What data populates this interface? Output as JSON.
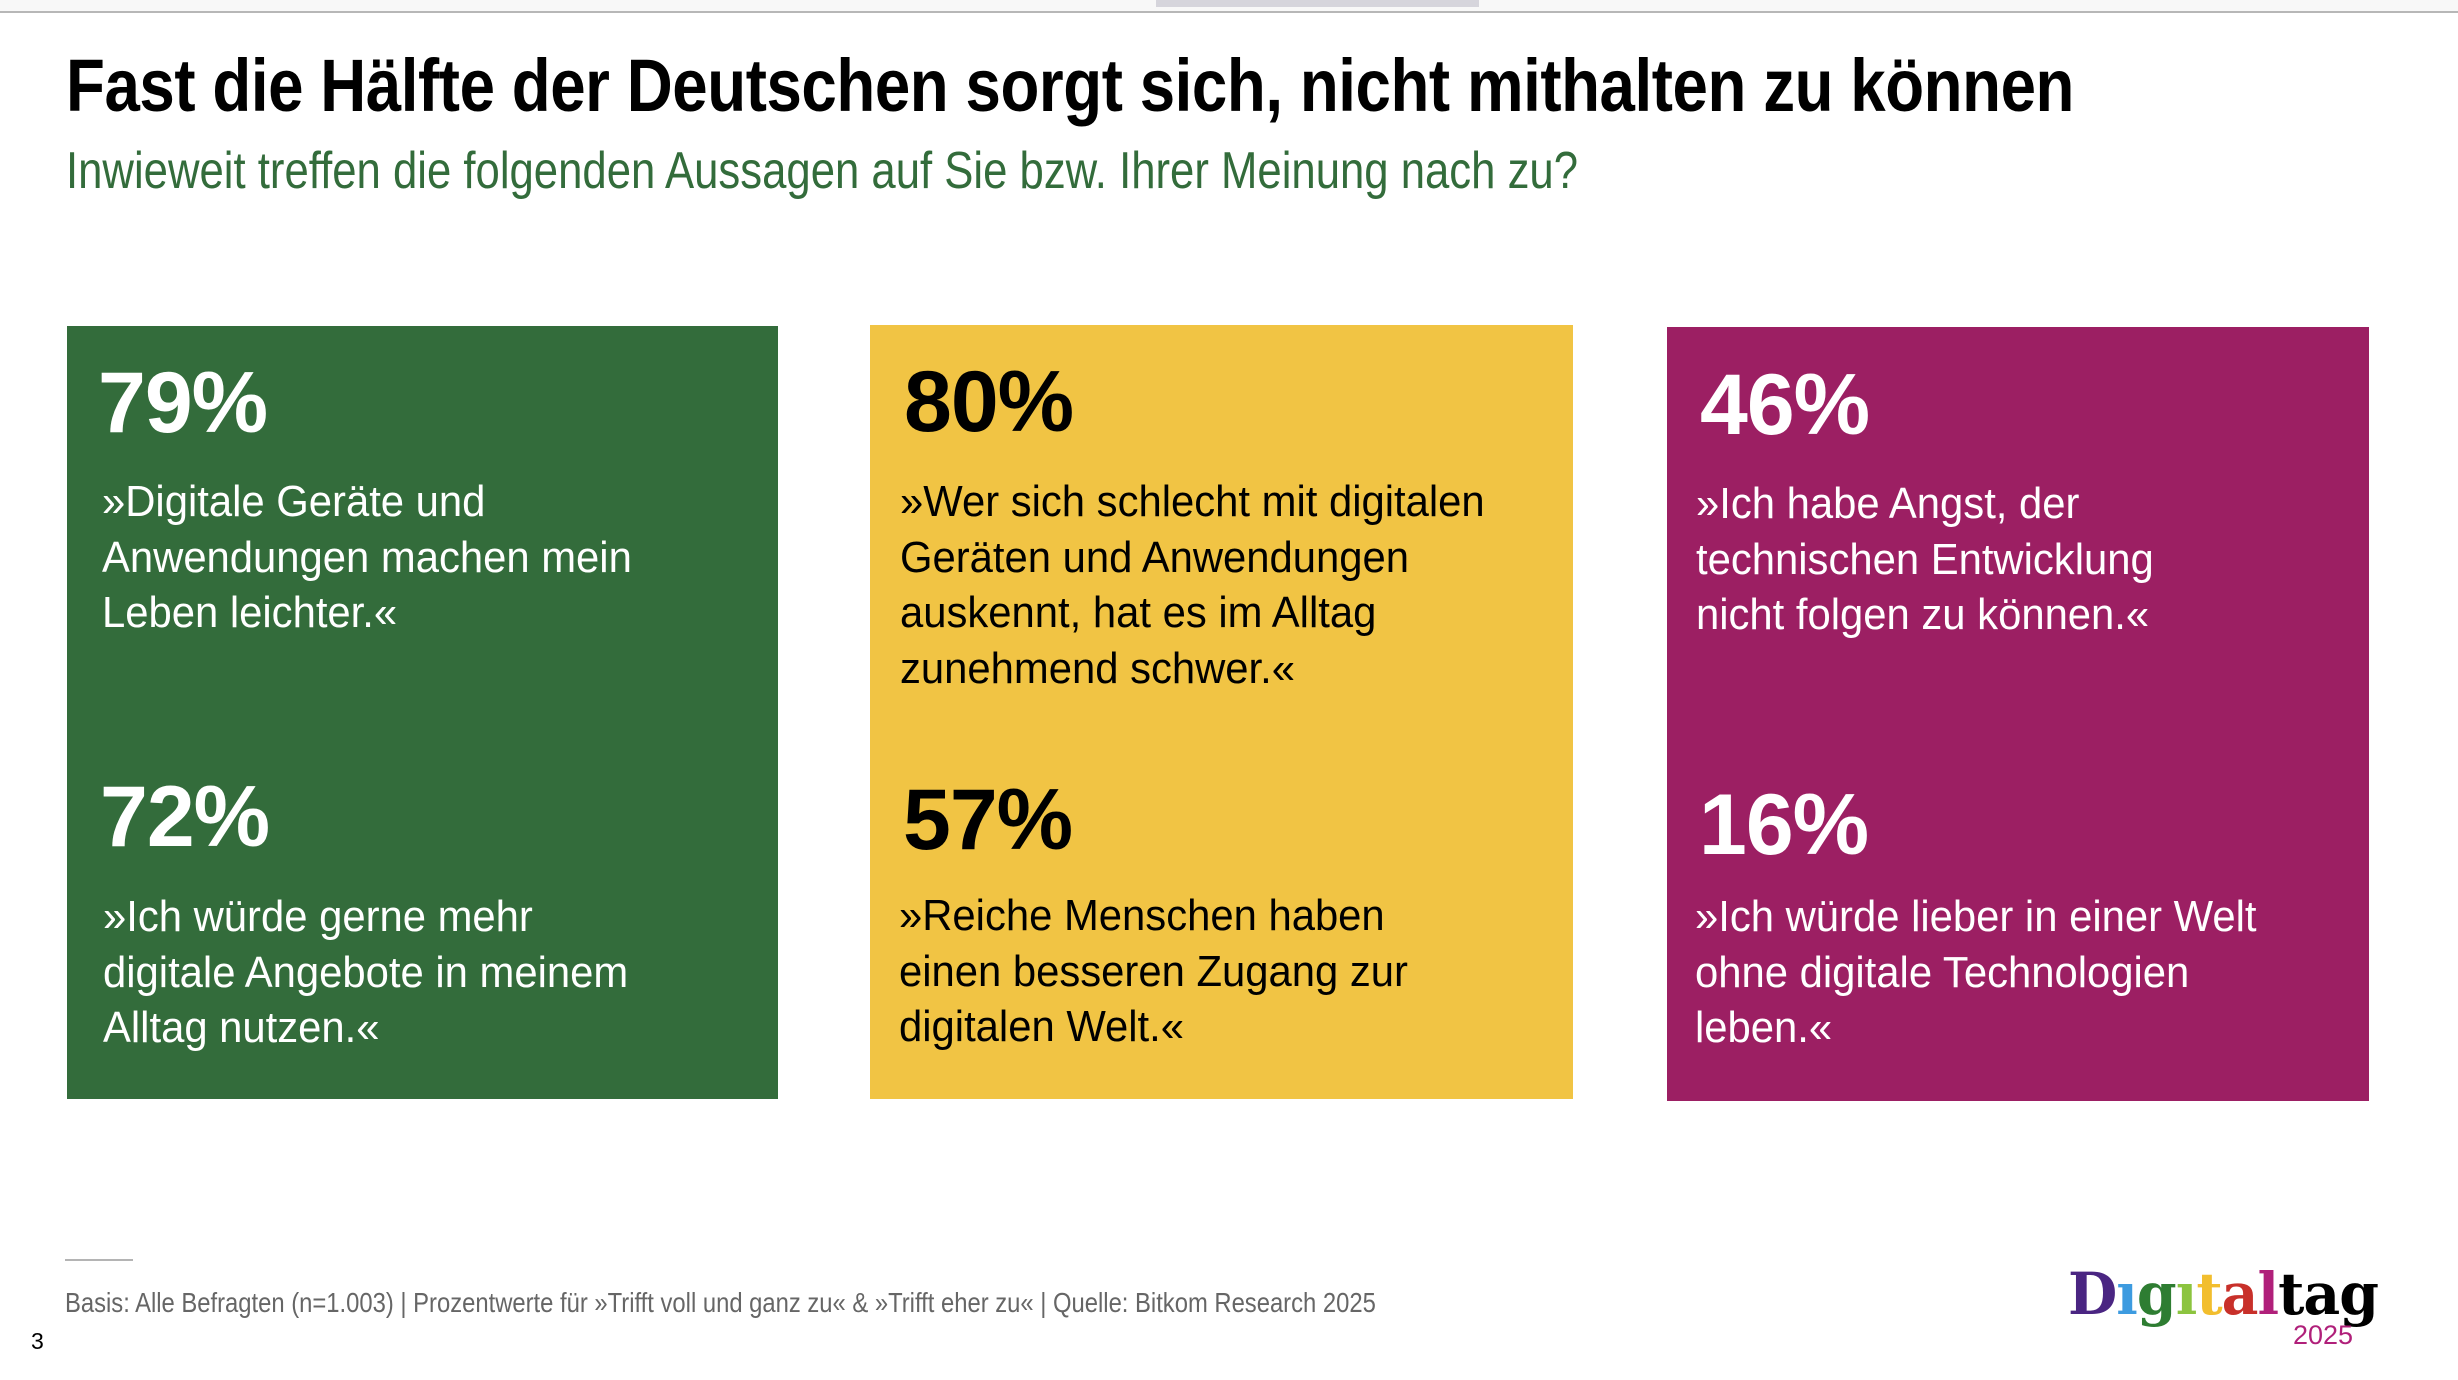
{
  "viewer": {
    "scrollbar": "horizontal-scroll-thumb"
  },
  "slide": {
    "title": "Fast die Hälfte der Deutschen sorgt sich, nicht mithalten zu können",
    "subtitle": "Inwieweit treffen die folgenden Aussagen auf Sie bzw. Ihrer Meinung nach zu?",
    "colors": {
      "title": "#000000",
      "subtitle": "#336c3b",
      "green_card": "#336c3b",
      "yellow_card": "#f1c444",
      "magenta_card": "#9c1f63"
    },
    "cards": [
      {
        "color": "green",
        "statements": [
          {
            "percent": "79%",
            "value": 79,
            "lines": [
              "»Digitale Geräte und",
              "Anwendungen machen mein",
              "Leben leichter.«"
            ]
          },
          {
            "percent": "72%",
            "value": 72,
            "lines": [
              "»Ich würde gerne mehr",
              "digitale Angebote in meinem",
              "Alltag nutzen.«"
            ]
          }
        ]
      },
      {
        "color": "yellow",
        "statements": [
          {
            "percent": "80%",
            "value": 80,
            "lines": [
              "»Wer sich schlecht mit digitalen",
              "Geräten und Anwendungen",
              "auskennt, hat es im Alltag",
              "zunehmend schwer.«"
            ]
          },
          {
            "percent": "57%",
            "value": 57,
            "lines": [
              "»Reiche Menschen haben",
              "einen besseren Zugang zur",
              "digitalen Welt.«"
            ]
          }
        ]
      },
      {
        "color": "magenta",
        "statements": [
          {
            "percent": "46%",
            "value": 46,
            "lines": [
              "»Ich habe Angst, der",
              "technischen Entwicklung",
              "nicht folgen zu können.«"
            ]
          },
          {
            "percent": "16%",
            "value": 16,
            "lines": [
              "»Ich würde lieber in einer Welt",
              "ohne digitale Technologien",
              "leben.«"
            ]
          }
        ]
      }
    ],
    "footnote": "Basis: Alle Befragten (n=1.003) | Prozentwerte für »Trifft voll und ganz zu« & »Trifft eher zu« | Quelle: Bitkom Research 2025",
    "page_number": "3",
    "logo": {
      "letters": [
        {
          "char": "D",
          "color": "#4a2582"
        },
        {
          "char": "ı",
          "color": "#3d9be0"
        },
        {
          "char": "g",
          "color": "#2e7d32"
        },
        {
          "char": "ı",
          "color": "#8cc43f"
        },
        {
          "char": "t",
          "color": "#f2be2e"
        },
        {
          "char": "a",
          "color": "#c8302a"
        },
        {
          "char": "l",
          "color": "#b0207a"
        },
        {
          "char": "t",
          "color": "#000000"
        },
        {
          "char": "a",
          "color": "#000000"
        },
        {
          "char": "g",
          "color": "#000000"
        }
      ],
      "year": "2025",
      "year_color": "#b0207a"
    }
  }
}
